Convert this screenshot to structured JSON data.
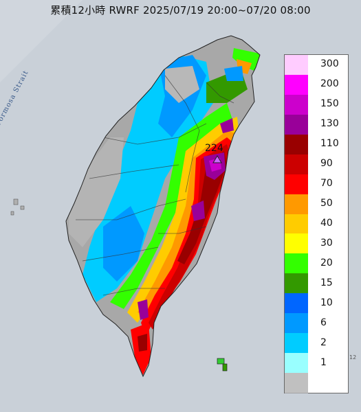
{
  "title": "累積12小時 RWRF 2025/07/19 20:00~07/20 08:00",
  "strait_label": "Formosa Strait",
  "max_marker": {
    "value": "224",
    "icon": "triangle-icon"
  },
  "edge_label": "12",
  "legend": [
    {
      "label": "300",
      "color": "#ffccff"
    },
    {
      "label": "200",
      "color": "#ff00ff"
    },
    {
      "label": "150",
      "color": "#cc00cc"
    },
    {
      "label": "130",
      "color": "#990099"
    },
    {
      "label": "110",
      "color": "#990000"
    },
    {
      "label": "90",
      "color": "#cc0000"
    },
    {
      "label": "70",
      "color": "#ff0000"
    },
    {
      "label": "50",
      "color": "#ff9900"
    },
    {
      "label": "40",
      "color": "#ffcc00"
    },
    {
      "label": "30",
      "color": "#ffff00"
    },
    {
      "label": "20",
      "color": "#33ff00"
    },
    {
      "label": "15",
      "color": "#339900"
    },
    {
      "label": "10",
      "color": "#0066ff"
    },
    {
      "label": "6",
      "color": "#0099ff"
    },
    {
      "label": "2",
      "color": "#00ccff"
    },
    {
      "label": "1",
      "color": "#99ffff"
    },
    {
      "label": "",
      "color": "#c0c0c0"
    }
  ]
}
